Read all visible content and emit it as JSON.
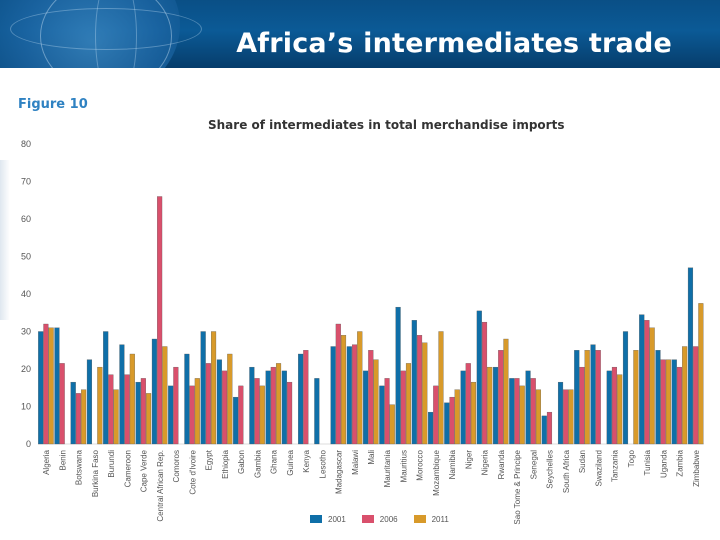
{
  "slide": {
    "title": "Africa’s intermediates trade",
    "figure_label": "Figure 10",
    "colors": {
      "banner": "#0b5a96"
    }
  },
  "chart_data": {
    "type": "bar",
    "title": "Share of intermediates in total merchandise imports",
    "xlabel": "",
    "ylabel": "",
    "ylim": [
      0,
      80
    ],
    "yticks": [
      0,
      10,
      20,
      30,
      40,
      50,
      60,
      70,
      80
    ],
    "grid": false,
    "legend_position": "bottom",
    "categories": [
      "Algeria",
      "Benin",
      "Botswana",
      "Burkina Faso",
      "Burundi",
      "Cameroon",
      "Cape Verde",
      "Central African Rep.",
      "Comoros",
      "Cote d'Ivoire",
      "Egypt",
      "Ethiopia",
      "Gabon",
      "Gambia",
      "Ghana",
      "Guinea",
      "Kenya",
      "Lesotho",
      "Madagascar",
      "Malawi",
      "Mali",
      "Mauritania",
      "Mauritius",
      "Morocco",
      "Mozambique",
      "Namibia",
      "Niger",
      "Nigeria",
      "Rwanda",
      "Sao Tome & Principe",
      "Senegal",
      "Seychelles",
      "South Africa",
      "Sudan",
      "Swaziland",
      "Tanzania",
      "Togo",
      "Tunisia",
      "Uganda",
      "Zambia",
      "Zimbabwe"
    ],
    "series": [
      {
        "name": "2001",
        "color": "#0f6fa8",
        "values": [
          30,
          31,
          16.5,
          22.5,
          30,
          26.5,
          16.5,
          28,
          15.5,
          24,
          30,
          22.5,
          12.5,
          20.5,
          19.5,
          19.5,
          24,
          17.5,
          26,
          26,
          19.5,
          15.5,
          36.5,
          33,
          8.5,
          11,
          19.5,
          35.5,
          20.5,
          17.5,
          19.5,
          7.5,
          16.5,
          25,
          26.5,
          19.5,
          30,
          34.5,
          25,
          22.5,
          47
        ]
      },
      {
        "name": "2006",
        "color": "#d9506c",
        "values": [
          32,
          21.5,
          13.5,
          null,
          18.5,
          18.5,
          17.5,
          66,
          20.5,
          15.5,
          21.5,
          19.5,
          15.5,
          17.5,
          20.5,
          16.5,
          25,
          null,
          32,
          26.5,
          25,
          17.5,
          19.5,
          29,
          15.5,
          12.5,
          21.5,
          32.5,
          25,
          17.5,
          17.5,
          8.5,
          14.5,
          20.5,
          25,
          20.5,
          null,
          33,
          22.5,
          20.5,
          26
        ]
      },
      {
        "name": "2011",
        "color": "#d89a2a",
        "values": [
          31,
          null,
          14.5,
          20.5,
          14.5,
          24,
          13.5,
          26,
          null,
          17.5,
          30,
          24,
          null,
          15.5,
          21.5,
          null,
          null,
          null,
          29,
          30,
          22.5,
          10.5,
          21.5,
          27,
          30,
          14.5,
          16.5,
          20.5,
          28,
          15.5,
          14.5,
          null,
          14.5,
          25,
          null,
          18.5,
          25,
          31,
          22.5,
          26,
          37.5
        ]
      }
    ]
  }
}
